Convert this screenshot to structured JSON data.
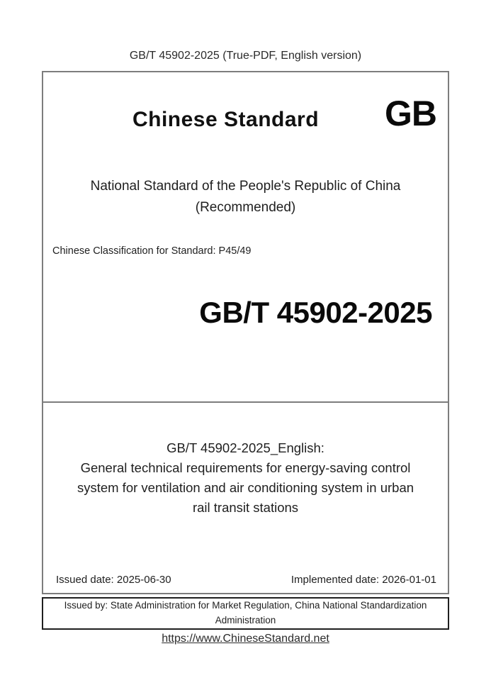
{
  "header": {
    "title": "GB/T 45902-2025 (True-PDF, English version)"
  },
  "cover": {
    "brand": "Chinese Standard",
    "logo": "GB",
    "national_line1": "National Standard of the People's Republic of China",
    "national_line2": "(Recommended)",
    "classification": "Chinese Classification for Standard: P45/49",
    "standard_code": "GB/T 45902-2025",
    "title_block": {
      "label": "GB/T 45902-2025_English:",
      "lines": [
        "General technical requirements for energy-saving control",
        "system for ventilation and air conditioning system in urban",
        "rail transit stations"
      ]
    },
    "issued_date": "Issued date: 2025-06-30",
    "implemented_date": "Implemented date: 2026-01-01",
    "issued_by": "Issued by: State Administration for Market Regulation, China National Standardization Administration"
  },
  "footer": {
    "link": "https://www.ChineseStandard.net"
  },
  "colors": {
    "box_border_gray": "#7d7d7d",
    "issuer_border_black": "#1f1f1f",
    "text": "#1c1c1c",
    "background": "#ffffff"
  }
}
